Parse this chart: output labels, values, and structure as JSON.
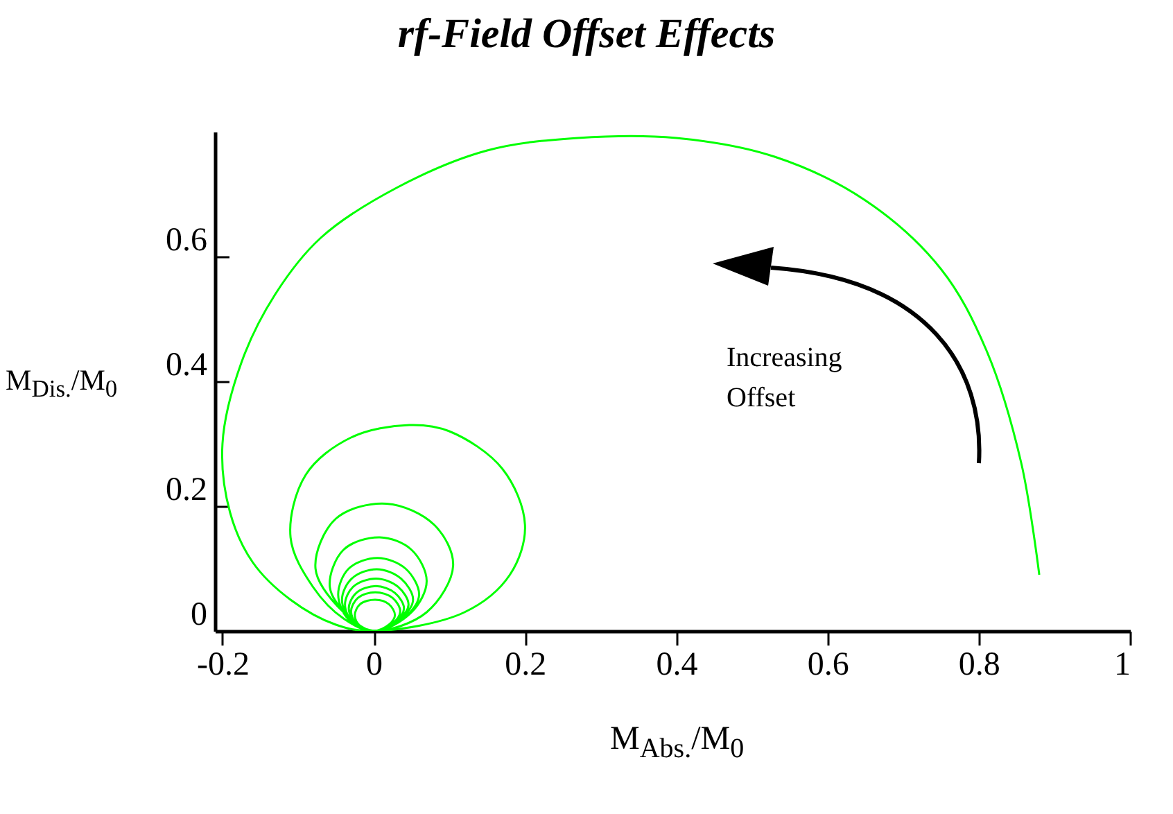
{
  "chart_data": {
    "type": "line",
    "title": "rf-Field Offset Effects",
    "xlabel": "M$_{Abs.}$/M$_{0}$",
    "ylabel": "M$_{Dis.}$/M$_{0}$",
    "annotations": [
      "Increasing Offset"
    ],
    "xlim": [
      -0.21,
      1.0
    ],
    "xticks": [
      -0.2,
      0,
      0.2,
      0.4,
      0.6,
      0.8,
      1
    ],
    "ylim": [
      0,
      0.8
    ],
    "yticks": [
      0,
      0.2,
      0.4,
      0.6
    ],
    "grid": false,
    "marker": "none",
    "line_style": "solid",
    "series": [
      {
        "color": "#00ff00",
        "x": [
          0.88,
          0.856,
          0.81,
          0.75,
          0.65,
          0.53,
          0.4,
          0.27,
          0.15,
          0.03,
          -0.07,
          -0.13,
          -0.175,
          -0.2,
          -0.19,
          -0.16,
          -0.11,
          -0.05,
          0,
          0.12,
          0.18,
          0.2,
          0.17,
          0.1,
          0.047,
          -0.03,
          -0.09,
          -0.11,
          -0.08,
          -0.04,
          0,
          0.07,
          0.105,
          0.08,
          0.017,
          -0.05,
          -0.077,
          -0.04,
          0,
          0.05,
          0.07,
          0.05,
          0.008,
          -0.04,
          -0.058,
          -0.03,
          0,
          0.042,
          0.06,
          0.042,
          0.005,
          -0.033,
          -0.047,
          -0.033,
          0,
          0.036,
          0.052,
          0.036,
          0.004,
          -0.029,
          -0.042,
          -0.029,
          0,
          0.032,
          0.046,
          0.032,
          0.003,
          -0.027,
          -0.038,
          -0.027,
          0,
          0.028,
          0.04,
          0.028,
          0.003,
          -0.023,
          -0.033,
          -0.023,
          0,
          0.025,
          0.035,
          0.025,
          0.002,
          -0.021,
          -0.03,
          -0.021,
          0,
          0.02,
          0.028,
          0.02,
          0.002,
          -0.018,
          -0.025,
          -0.018,
          0
        ],
        "values": [
          0.09,
          0.27,
          0.45,
          0.58,
          0.69,
          0.76,
          0.79,
          0.79,
          0.77,
          0.71,
          0.63,
          0.54,
          0.43,
          0.3,
          0.19,
          0.11,
          0.05,
          0.01,
          0,
          0.03,
          0.09,
          0.17,
          0.26,
          0.32,
          0.33,
          0.31,
          0.25,
          0.15,
          0.07,
          0.02,
          0,
          0.03,
          0.105,
          0.17,
          0.204,
          0.18,
          0.1,
          0.03,
          0,
          0.03,
          0.08,
          0.13,
          0.15,
          0.13,
          0.07,
          0.02,
          0,
          0.023,
          0.058,
          0.1,
          0.117,
          0.1,
          0.058,
          0.018,
          0,
          0.02,
          0.05,
          0.084,
          0.099,
          0.084,
          0.05,
          0.015,
          0,
          0.017,
          0.042,
          0.071,
          0.084,
          0.071,
          0.042,
          0.013,
          0,
          0.014,
          0.036,
          0.061,
          0.072,
          0.061,
          0.036,
          0.011,
          0,
          0.012,
          0.031,
          0.053,
          0.062,
          0.053,
          0.031,
          0.009,
          0,
          0.01,
          0.025,
          0.043,
          0.05,
          0.043,
          0.025,
          0.008,
          0
        ]
      }
    ]
  }
}
